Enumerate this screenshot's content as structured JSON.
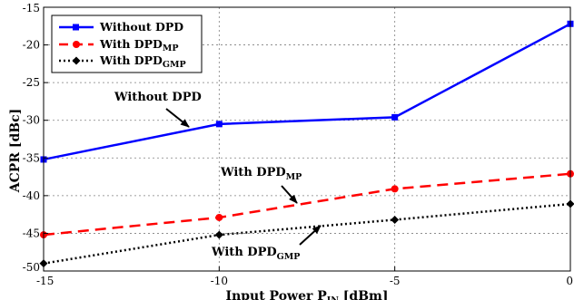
{
  "chart_data": {
    "type": "line",
    "x": [
      -15,
      -10,
      -5,
      0
    ],
    "xlim": [
      -15,
      0
    ],
    "ylim": [
      -50,
      -15
    ],
    "xticks": [
      "-15",
      "-10",
      "-5",
      "0"
    ],
    "yticks": [
      "-15",
      "-20",
      "-25",
      "-30",
      "-35",
      "-40",
      "-45",
      "-50"
    ],
    "xlabel_main": "Input Power P",
    "xlabel_sub": "IN",
    "xlabel_tail": " [dBm]",
    "ylabel": "ACPR [dBc]",
    "grid": true,
    "legend_position": "top-left",
    "series": [
      {
        "name": "Without DPD",
        "name_main": "Without DPD",
        "name_sub": "",
        "color": "#0000ff",
        "marker": "square",
        "line": "solid",
        "values": [
          -35.2,
          -30.5,
          -29.6,
          -17.2
        ]
      },
      {
        "name": "With DPD_MP",
        "name_main": "With DPD",
        "name_sub": "MP",
        "color": "#ff0000",
        "marker": "circle",
        "line": "dashed",
        "values": [
          -45.2,
          -42.9,
          -39.1,
          -37.1
        ]
      },
      {
        "name": "With DPD_GMP",
        "name_main": "With DPD",
        "name_sub": "GMP",
        "color": "#000000",
        "marker": "diamond",
        "line": "dotted",
        "values": [
          -49.0,
          -45.2,
          -43.2,
          -41.1
        ]
      }
    ],
    "annotations": [
      {
        "text_main": "Without DPD",
        "text_sub": ""
      },
      {
        "text_main": "With DPD",
        "text_sub": "MP"
      },
      {
        "text_main": "With DPD",
        "text_sub": "GMP"
      }
    ]
  }
}
